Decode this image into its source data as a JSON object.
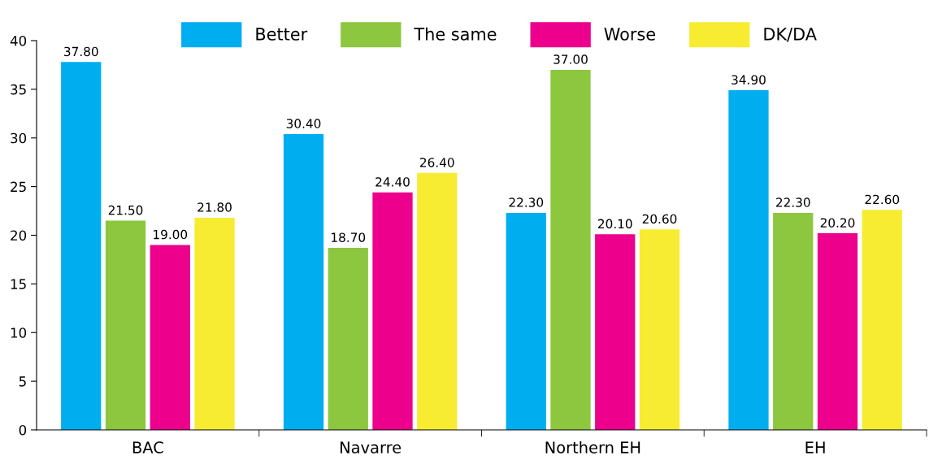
{
  "chart_data": {
    "type": "bar",
    "categories": [
      "BAC",
      "Navarre",
      "Northern EH",
      "EH"
    ],
    "series": [
      {
        "name": "Better",
        "color": "#00aeef",
        "values": [
          37.8,
          30.4,
          22.3,
          34.9
        ],
        "value_labels": [
          "37.80",
          "30.40",
          "22.30",
          "34.90"
        ]
      },
      {
        "name": "The same",
        "color": "#8dc63f",
        "values": [
          21.5,
          18.7,
          37.0,
          22.3
        ],
        "value_labels": [
          "21.50",
          "18.70",
          "37.00",
          "22.30"
        ]
      },
      {
        "name": "Worse",
        "color": "#ec008c",
        "values": [
          19.0,
          24.4,
          20.1,
          20.2
        ],
        "value_labels": [
          "19.00",
          "24.40",
          "20.10",
          "20.20"
        ]
      },
      {
        "name": "DK/DA",
        "color": "#f7ec31",
        "values": [
          21.8,
          26.4,
          20.6,
          22.6
        ],
        "value_labels": [
          "21.80",
          "26.40",
          "20.60",
          "22.60"
        ]
      }
    ],
    "ylim": [
      0,
      40
    ],
    "yticks": [
      0,
      5,
      10,
      15,
      20,
      25,
      30,
      35,
      40
    ],
    "grid": false,
    "legend": "top"
  }
}
